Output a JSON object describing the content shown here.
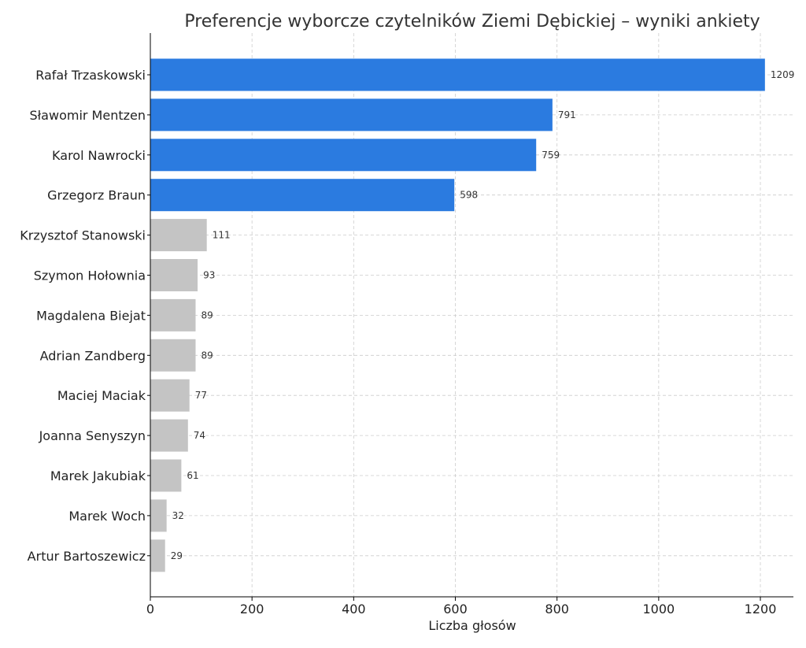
{
  "chart_data": {
    "type": "bar",
    "orientation": "horizontal",
    "title": "Preferencje wyborcze czytelników Ziemi Dębickiej – wyniki ankiety",
    "xlabel": "Liczba głosów",
    "ylabel": "",
    "xlim": [
      0,
      1265
    ],
    "xticks": [
      0,
      200,
      400,
      600,
      800,
      1000,
      1200
    ],
    "grid": true,
    "categories": [
      "Rafał Trzaskowski",
      "Sławomir Mentzen",
      "Karol Nawrocki",
      "Grzegorz Braun",
      "Krzysztof Stanowski",
      "Szymon Hołownia",
      "Magdalena Biejat",
      "Adrian Zandberg",
      "Maciej Maciak",
      "Joanna Senyszyn",
      "Marek Jakubiak",
      "Marek Woch",
      "Artur Bartoszewicz"
    ],
    "values": [
      1209,
      791,
      759,
      598,
      111,
      93,
      89,
      89,
      77,
      74,
      61,
      32,
      29
    ],
    "highlight_count": 4,
    "colors": {
      "highlight": "#2b7be0",
      "other": "#c4c4c4"
    }
  }
}
